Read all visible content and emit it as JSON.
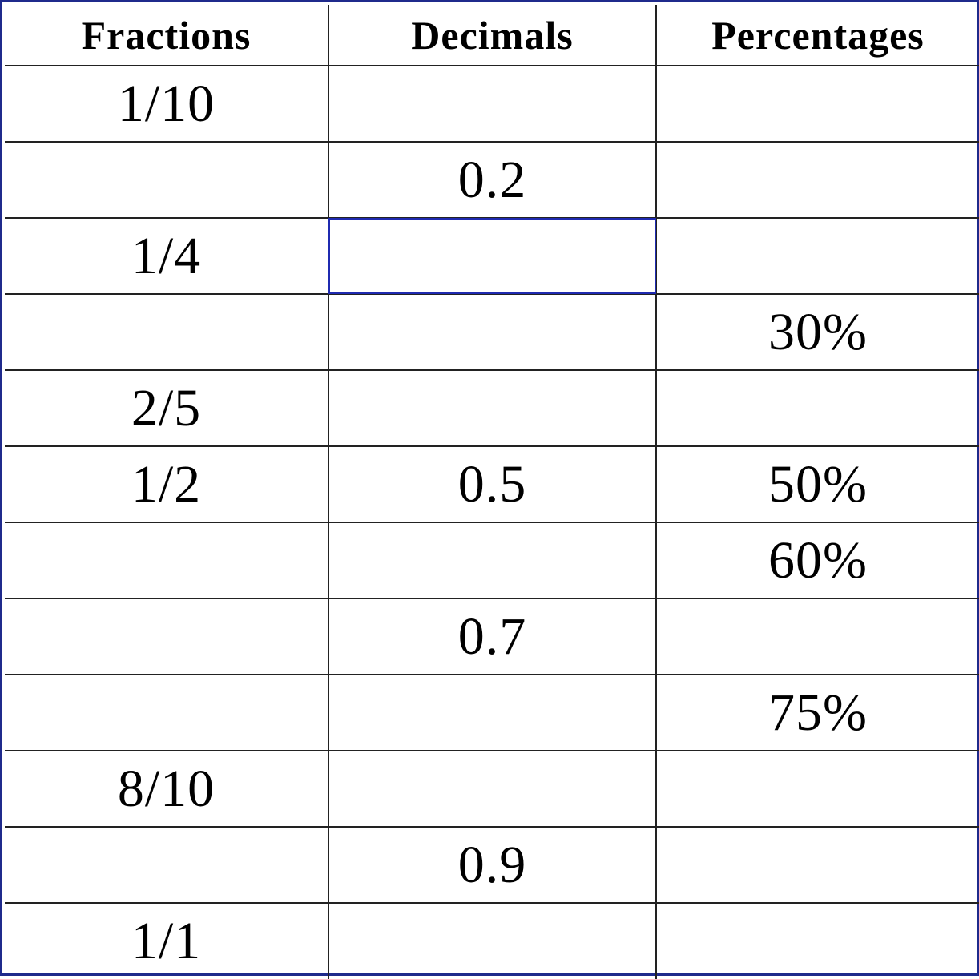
{
  "table": {
    "headers": [
      "Fractions",
      "Decimals",
      "Percentages"
    ],
    "rows": [
      [
        "1/10",
        "",
        ""
      ],
      [
        "",
        "0.2",
        ""
      ],
      [
        "1/4",
        "",
        ""
      ],
      [
        "",
        "",
        "30%"
      ],
      [
        "2/5",
        "",
        ""
      ],
      [
        "1/2",
        "0.5",
        "50%"
      ],
      [
        "",
        "",
        "60%"
      ],
      [
        "",
        "0.7",
        ""
      ],
      [
        "",
        "",
        "75%"
      ],
      [
        "8/10",
        "",
        ""
      ],
      [
        "",
        "0.9",
        ""
      ],
      [
        "1/1",
        "",
        ""
      ]
    ],
    "selected_cell": {
      "row": 2,
      "col": 1
    },
    "border_color": "#1f2a8c"
  }
}
